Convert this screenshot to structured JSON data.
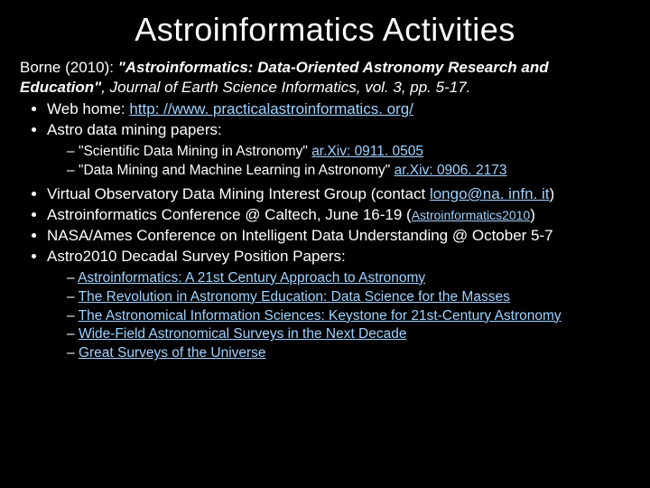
{
  "colors": {
    "background": "#000000",
    "text": "#ffffff",
    "link": "#9fd3ff"
  },
  "title": "Astroinformatics Activities",
  "citation": {
    "lead": "Borne (2010): ",
    "ref_title": "\"Astroinformatics: Data-Oriented Astronomy Research and Education\"",
    "journal": ", Journal of Earth Science Informatics, vol. 3, pp. 5-17."
  },
  "b1": {
    "label": "Web home:   ",
    "url": "http: //www. practicalastroinformatics. org/"
  },
  "b2": {
    "label": "Astro data mining papers:",
    "papers": [
      {
        "text": "\"Scientific Data Mining in Astronomy\" ",
        "link": "ar.Xiv: 0911. 0505"
      },
      {
        "text": "\"Data Mining and Machine Learning in Astronomy\" ",
        "link": "ar.Xiv: 0906. 2173"
      }
    ]
  },
  "b3": {
    "pre": "Virtual Observatory Data Mining Interest Group (contact ",
    "email": "longo@na. infn. it",
    "post": ")"
  },
  "b4": {
    "pre": "Astroinformatics Conference @ Caltech, June 16-19 (",
    "link": "Astroinformatics2010",
    "post": ")"
  },
  "b5": "NASA/Ames Conference on Intelligent Data Understanding @ October 5-7",
  "b6": {
    "label": "Astro2010 Decadal Survey Position Papers:",
    "items": [
      "Astroinformatics: A 21st Century Approach to Astronomy",
      "The Revolution in Astronomy Education: Data Science for the Masses",
      "The Astronomical Information Sciences: Keystone for 21st-Century Astronomy",
      "Wide-Field Astronomical Surveys in the Next Decade",
      "Great Surveys of the Universe"
    ]
  }
}
